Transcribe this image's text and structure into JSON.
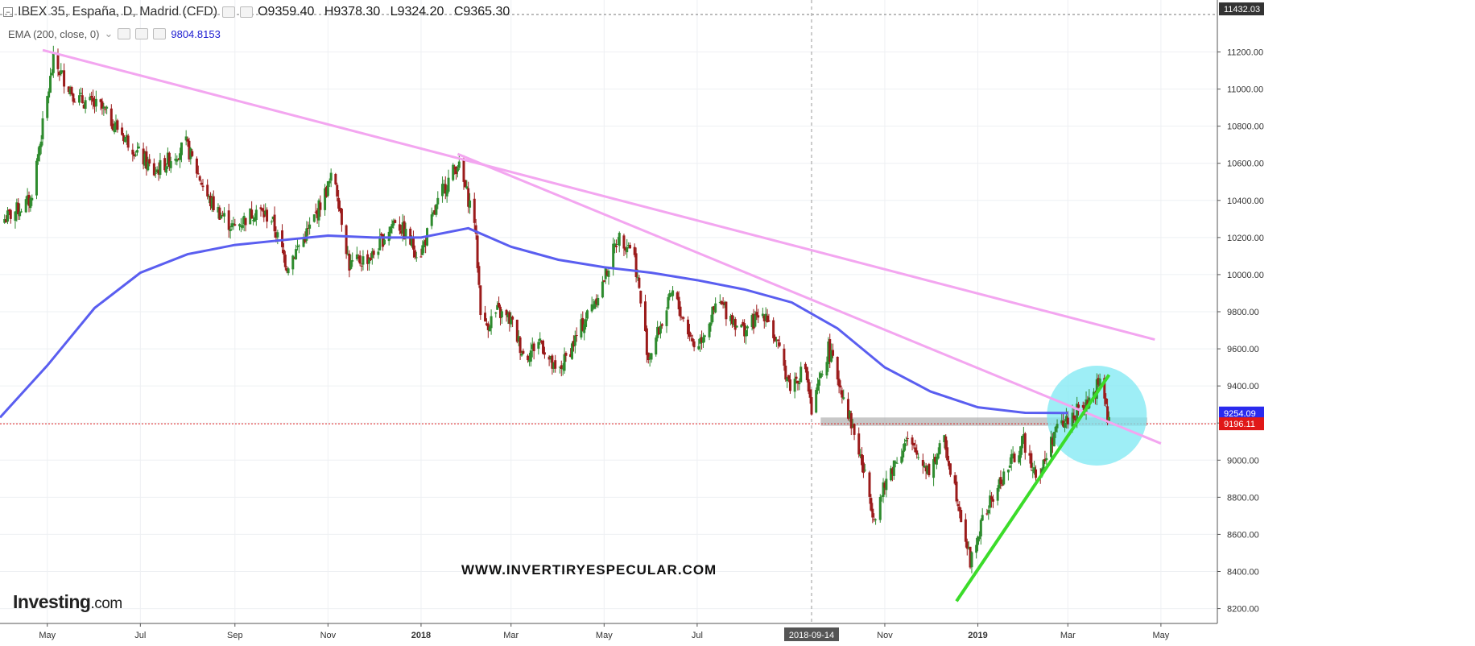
{
  "header": {
    "symbol": "IBEX 35, España, D, Madrid (CFD)",
    "open": "O9359.40",
    "high": "H9378.30",
    "low": "L9324.20",
    "close": "C9365.30"
  },
  "indicator": {
    "label": "EMA (200, close, 0)",
    "value": "9804.8153"
  },
  "watermark": "WWW.INVERTIRYESPECULAR.COM",
  "logo": {
    "main": "Investing",
    "suffix": ".com"
  },
  "crosshair_date_label": "2018-09-14",
  "price_badges": {
    "top": "11432.03",
    "ema": "9254.09",
    "current": "9196.11"
  },
  "colors": {
    "up": "#2e8b2e",
    "down": "#9b1b1b",
    "ema": "#5a5ef0",
    "trend_pink": "#f3a6f0",
    "trend_green": "#3bdc2a",
    "highlight_circle": "#7ee8f3",
    "support_band": "#9a9a9a",
    "current_line": "#e02020"
  },
  "chart_data": {
    "type": "candlestick",
    "title": "IBEX 35, España, D, Madrid (CFD)",
    "y_axis": {
      "ticks": [
        "8200.00",
        "8400.00",
        "8600.00",
        "8800.00",
        "9000.00",
        "9200.00",
        "9400.00",
        "9600.00",
        "9800.00",
        "10000.00",
        "10200.00",
        "10400.00",
        "10600.00",
        "10800.00",
        "11000.00",
        "11200.00"
      ],
      "range": [
        8120,
        11480
      ]
    },
    "x_axis": {
      "ticks": [
        {
          "label": "May",
          "date": "2017-05-01",
          "bold": false
        },
        {
          "label": "Jul",
          "date": "2017-07-01",
          "bold": false
        },
        {
          "label": "Sep",
          "date": "2017-09-01",
          "bold": false
        },
        {
          "label": "Nov",
          "date": "2017-11-01",
          "bold": false
        },
        {
          "label": "2018",
          "date": "2018-01-01",
          "bold": true
        },
        {
          "label": "Mar",
          "date": "2018-03-01",
          "bold": false
        },
        {
          "label": "May",
          "date": "2018-05-01",
          "bold": false
        },
        {
          "label": "Jul",
          "date": "2018-07-01",
          "bold": false
        },
        {
          "label": "Nov",
          "date": "2018-11-01",
          "bold": false
        },
        {
          "label": "2019",
          "date": "2019-01-01",
          "bold": true
        },
        {
          "label": "Mar",
          "date": "2019-03-01",
          "bold": false
        },
        {
          "label": "May",
          "date": "2019-05-01",
          "bold": false
        }
      ],
      "range": [
        "2017-03-31",
        "2019-06-07"
      ]
    },
    "close_path": [
      {
        "date": "2017-04-03",
        "value": 10300
      },
      {
        "date": "2017-04-20",
        "value": 10400
      },
      {
        "date": "2017-05-05",
        "value": 11150
      },
      {
        "date": "2017-05-20",
        "value": 10950
      },
      {
        "date": "2017-06-05",
        "value": 10900
      },
      {
        "date": "2017-06-20",
        "value": 10750
      },
      {
        "date": "2017-07-10",
        "value": 10550
      },
      {
        "date": "2017-07-31",
        "value": 10700
      },
      {
        "date": "2017-08-15",
        "value": 10400
      },
      {
        "date": "2017-08-31",
        "value": 10250
      },
      {
        "date": "2017-09-15",
        "value": 10350
      },
      {
        "date": "2017-09-25",
        "value": 10300
      },
      {
        "date": "2017-10-05",
        "value": 10050
      },
      {
        "date": "2017-10-20",
        "value": 10250
      },
      {
        "date": "2017-11-05",
        "value": 10550
      },
      {
        "date": "2017-11-15",
        "value": 10050
      },
      {
        "date": "2017-11-30",
        "value": 10100
      },
      {
        "date": "2017-12-15",
        "value": 10300
      },
      {
        "date": "2017-12-31",
        "value": 10100
      },
      {
        "date": "2018-01-15",
        "value": 10450
      },
      {
        "date": "2018-01-25",
        "value": 10600
      },
      {
        "date": "2018-02-05",
        "value": 10300
      },
      {
        "date": "2018-02-10",
        "value": 9700
      },
      {
        "date": "2018-02-20",
        "value": 9800
      },
      {
        "date": "2018-03-01",
        "value": 9750
      },
      {
        "date": "2018-03-10",
        "value": 9550
      },
      {
        "date": "2018-03-20",
        "value": 9650
      },
      {
        "date": "2018-03-31",
        "value": 9450
      },
      {
        "date": "2018-04-15",
        "value": 9700
      },
      {
        "date": "2018-04-30",
        "value": 9950
      },
      {
        "date": "2018-05-10",
        "value": 10200
      },
      {
        "date": "2018-05-20",
        "value": 10150
      },
      {
        "date": "2018-05-30",
        "value": 9550
      },
      {
        "date": "2018-06-15",
        "value": 9900
      },
      {
        "date": "2018-06-30",
        "value": 9600
      },
      {
        "date": "2018-07-15",
        "value": 9850
      },
      {
        "date": "2018-07-31",
        "value": 9700
      },
      {
        "date": "2018-08-15",
        "value": 9800
      },
      {
        "date": "2018-08-31",
        "value": 9400
      },
      {
        "date": "2018-09-10",
        "value": 9500
      },
      {
        "date": "2018-09-14",
        "value": 9250
      },
      {
        "date": "2018-09-25",
        "value": 9600
      },
      {
        "date": "2018-10-05",
        "value": 9350
      },
      {
        "date": "2018-10-15",
        "value": 9050
      },
      {
        "date": "2018-10-25",
        "value": 8700
      },
      {
        "date": "2018-11-05",
        "value": 8950
      },
      {
        "date": "2018-11-15",
        "value": 9100
      },
      {
        "date": "2018-11-30",
        "value": 8950
      },
      {
        "date": "2018-12-10",
        "value": 9100
      },
      {
        "date": "2018-12-20",
        "value": 8750
      },
      {
        "date": "2018-12-27",
        "value": 8450
      },
      {
        "date": "2019-01-05",
        "value": 8700
      },
      {
        "date": "2019-01-20",
        "value": 8950
      },
      {
        "date": "2019-01-31",
        "value": 9100
      },
      {
        "date": "2019-02-10",
        "value": 8900
      },
      {
        "date": "2019-02-20",
        "value": 9150
      },
      {
        "date": "2019-03-05",
        "value": 9250
      },
      {
        "date": "2019-03-15",
        "value": 9300
      },
      {
        "date": "2019-03-22",
        "value": 9450
      },
      {
        "date": "2019-03-28",
        "value": 9200
      }
    ],
    "ema_200": [
      {
        "date": "2017-03-31",
        "value": 9230
      },
      {
        "date": "2017-05-01",
        "value": 9510
      },
      {
        "date": "2017-06-01",
        "value": 9820
      },
      {
        "date": "2017-07-01",
        "value": 10010
      },
      {
        "date": "2017-08-01",
        "value": 10110
      },
      {
        "date": "2017-09-01",
        "value": 10160
      },
      {
        "date": "2017-10-01",
        "value": 10185
      },
      {
        "date": "2017-11-01",
        "value": 10210
      },
      {
        "date": "2017-12-01",
        "value": 10200
      },
      {
        "date": "2018-01-01",
        "value": 10200
      },
      {
        "date": "2018-02-01",
        "value": 10250
      },
      {
        "date": "2018-03-01",
        "value": 10150
      },
      {
        "date": "2018-04-01",
        "value": 10080
      },
      {
        "date": "2018-05-01",
        "value": 10040
      },
      {
        "date": "2018-06-01",
        "value": 10010
      },
      {
        "date": "2018-07-01",
        "value": 9970
      },
      {
        "date": "2018-08-01",
        "value": 9920
      },
      {
        "date": "2018-09-01",
        "value": 9850
      },
      {
        "date": "2018-10-01",
        "value": 9710
      },
      {
        "date": "2018-11-01",
        "value": 9500
      },
      {
        "date": "2018-12-01",
        "value": 9370
      },
      {
        "date": "2019-01-01",
        "value": 9285
      },
      {
        "date": "2019-02-01",
        "value": 9255
      },
      {
        "date": "2019-03-01",
        "value": 9254
      }
    ],
    "trendlines": [
      {
        "name": "upper-downtrend",
        "color": "#f3a6f0",
        "from": {
          "date": "2017-04-28",
          "value": 11210
        },
        "to": {
          "date": "2019-04-27",
          "value": 9650
        }
      },
      {
        "name": "lower-downtrend",
        "color": "#f3a6f0",
        "from": {
          "date": "2018-01-25",
          "value": 10650
        },
        "to": {
          "date": "2019-05-01",
          "value": 9090
        }
      },
      {
        "name": "uptrend-support",
        "color": "#3bdc2a",
        "from": {
          "date": "2018-12-18",
          "value": 8240
        },
        "to": {
          "date": "2019-03-28",
          "value": 9460
        }
      }
    ],
    "support_band": {
      "from": "2018-09-20",
      "to": "2019-04-22",
      "low": 9185,
      "high": 9230
    },
    "current_price_line": 9196.11,
    "highlight_circle": {
      "date": "2019-03-20",
      "value": 9240
    },
    "crosshair_date": "2018-09-14"
  }
}
